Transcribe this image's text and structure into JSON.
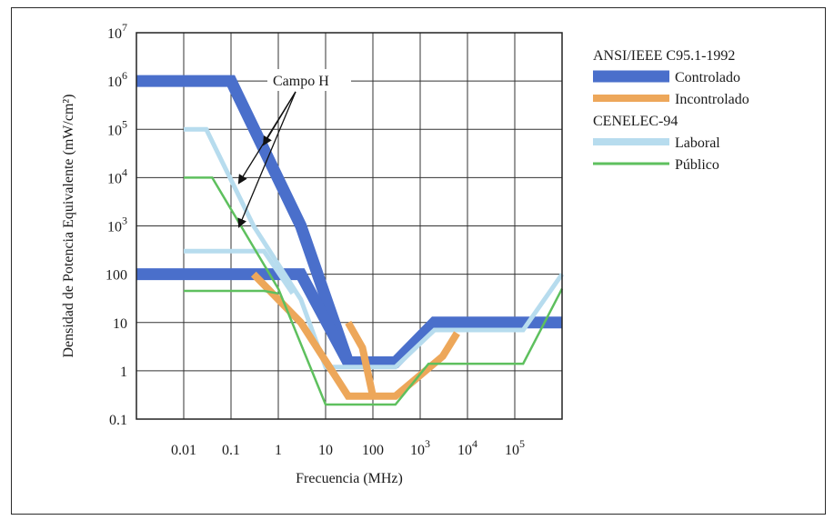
{
  "chart_data": {
    "type": "line",
    "xlabel": "Frecuencia (MHz)",
    "ylabel": "Densidad de Potencia Equivalente (mW/cm²)",
    "xscale": "log",
    "yscale": "log",
    "xlim": [
      0.001,
      1000000
    ],
    "ylim": [
      0.1,
      10000000
    ],
    "grid": true,
    "x_tick_labels": [
      {
        "x": 0.01,
        "label": "0.01"
      },
      {
        "x": 0.1,
        "label": "0.1"
      },
      {
        "x": 1,
        "label": "1"
      },
      {
        "x": 10,
        "label": "10"
      },
      {
        "x": 100,
        "label": "100"
      },
      {
        "x": 1000,
        "base": "10",
        "exp": "3"
      },
      {
        "x": 10000,
        "base": "10",
        "exp": "4"
      },
      {
        "x": 100000,
        "base": "10",
        "exp": "5"
      }
    ],
    "y_tick_labels": [
      {
        "y": 10000000,
        "base": "10",
        "exp": "7"
      },
      {
        "y": 1000000,
        "base": "10",
        "exp": "6"
      },
      {
        "y": 100000,
        "base": "10",
        "exp": "5"
      },
      {
        "y": 10000,
        "base": "10",
        "exp": "4"
      },
      {
        "y": 1000,
        "base": "10",
        "exp": "3"
      },
      {
        "y": 100,
        "label": "100"
      },
      {
        "y": 10,
        "label": "10"
      },
      {
        "y": 1,
        "label": "1"
      },
      {
        "y": 0.1,
        "label": "0.1"
      }
    ],
    "legend": {
      "placement": "right",
      "groups": [
        {
          "title": "ANSI/IEEE C95.1-1992",
          "entries": [
            {
              "name": "Controlado",
              "color": "#4a6fcb",
              "width": "thick"
            },
            {
              "name": "Incontrolado",
              "color": "#eda75a",
              "width": "medium"
            }
          ]
        },
        {
          "title": "CENELEC-94",
          "entries": [
            {
              "name": "Laboral",
              "color": "#b7dcee",
              "width": "medium"
            },
            {
              "name": "Público",
              "color": "#5ec05e",
              "width": "thin"
            }
          ]
        }
      ]
    },
    "annotation": {
      "text": "Campo H",
      "arrow_targets": [
        [
          0.5,
          50000
        ],
        [
          0.15,
          8000
        ],
        [
          0.15,
          1000
        ]
      ]
    },
    "series": [
      {
        "name": "Controlado",
        "color": "#4a6fcb",
        "width": 13,
        "segments": [
          [
            [
              0.001,
              1000000
            ],
            [
              0.1,
              1000000
            ],
            [
              3,
              1000
            ],
            [
              30,
              1.5
            ],
            [
              300,
              1.5
            ],
            [
              2000,
              10
            ],
            [
              1000000,
              10
            ]
          ],
          [
            [
              0.001,
              100
            ],
            [
              3,
              100
            ],
            [
              30,
              1.5
            ]
          ]
        ]
      },
      {
        "name": "Incontrolado",
        "color": "#eda75a",
        "width": 8,
        "segments": [
          [
            [
              0.3,
              100
            ],
            [
              3,
              10
            ],
            [
              30,
              0.3
            ],
            [
              300,
              0.3
            ],
            [
              3000,
              2
            ],
            [
              6000,
              6
            ]
          ],
          [
            [
              30,
              10
            ],
            [
              60,
              3
            ],
            [
              100,
              0.3
            ]
          ]
        ]
      },
      {
        "name": "Laboral",
        "color": "#b7dcee",
        "width": 5,
        "segments": [
          [
            [
              0.01,
              100000
            ],
            [
              0.03,
              100000
            ],
            [
              0.3,
              1000
            ],
            [
              3,
              30
            ],
            [
              10,
              1.2
            ],
            [
              300,
              1.2
            ],
            [
              2000,
              7
            ],
            [
              150000,
              7
            ],
            [
              1000000,
              100
            ]
          ],
          [
            [
              0.01,
              300
            ],
            [
              0.5,
              300
            ],
            [
              2,
              40
            ]
          ]
        ]
      },
      {
        "name": "Público",
        "color": "#5ec05e",
        "width": 2.5,
        "segments": [
          [
            [
              0.01,
              10000
            ],
            [
              0.04,
              10000
            ],
            [
              1,
              50
            ],
            [
              10,
              0.2
            ],
            [
              300,
              0.2
            ],
            [
              1500,
              1.4
            ],
            [
              150000,
              1.4
            ],
            [
              1000000,
              50
            ]
          ],
          [
            [
              0.01,
              45
            ],
            [
              0.5,
              45
            ],
            [
              1,
              40
            ]
          ]
        ]
      }
    ]
  }
}
